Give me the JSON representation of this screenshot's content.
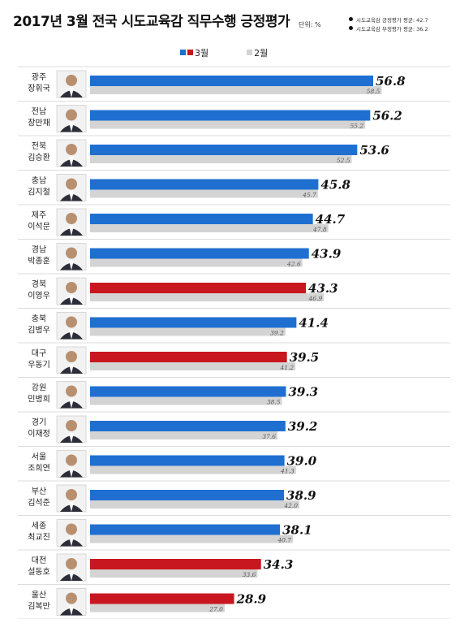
{
  "title": "2017년 3월 전국 시도교육감 직무수행 긍정평가",
  "unit": "단위: %",
  "averages": [
    "시도교육감 긍정평가 평균: 42.7",
    "시도교육감 부정평가 평균: 36.2"
  ],
  "colors": {
    "march_blue": "#1f6fd1",
    "march_red": "#c8171e",
    "feb_gray": "#d4d4d4",
    "row_line": "#dddddd"
  },
  "legend": {
    "march_label": "3월",
    "feb_label": "2월"
  },
  "chart_data": {
    "type": "bar",
    "orientation": "horizontal",
    "xlim": [
      0,
      60
    ],
    "grid": false,
    "legend_position": "top",
    "categories": [
      {
        "region": "광주",
        "name": "장휘국",
        "march": 56.8,
        "feb": 58.5,
        "highlight": false
      },
      {
        "region": "전남",
        "name": "장만채",
        "march": 56.2,
        "feb": 55.2,
        "highlight": false
      },
      {
        "region": "전북",
        "name": "김승환",
        "march": 53.6,
        "feb": 52.5,
        "highlight": false
      },
      {
        "region": "충남",
        "name": "김지철",
        "march": 45.8,
        "feb": 45.7,
        "highlight": false
      },
      {
        "region": "제주",
        "name": "이석문",
        "march": 44.7,
        "feb": 47.8,
        "highlight": false
      },
      {
        "region": "경남",
        "name": "박종훈",
        "march": 43.9,
        "feb": 42.6,
        "highlight": false
      },
      {
        "region": "경북",
        "name": "이영우",
        "march": 43.3,
        "feb": 46.9,
        "highlight": true
      },
      {
        "region": "충북",
        "name": "김병우",
        "march": 41.4,
        "feb": 39.2,
        "highlight": false
      },
      {
        "region": "대구",
        "name": "우동기",
        "march": 39.5,
        "feb": 41.2,
        "highlight": true
      },
      {
        "region": "강원",
        "name": "민병희",
        "march": 39.3,
        "feb": 38.5,
        "highlight": false
      },
      {
        "region": "경기",
        "name": "이재정",
        "march": 39.2,
        "feb": 37.6,
        "highlight": false
      },
      {
        "region": "서울",
        "name": "조희연",
        "march": 39.0,
        "feb": 41.3,
        "highlight": false
      },
      {
        "region": "부산",
        "name": "김석준",
        "march": 38.9,
        "feb": 42.0,
        "highlight": false
      },
      {
        "region": "세종",
        "name": "최교진",
        "march": 38.1,
        "feb": 40.7,
        "highlight": false
      },
      {
        "region": "대전",
        "name": "설동호",
        "march": 34.3,
        "feb": 33.6,
        "highlight": true
      },
      {
        "region": "울산",
        "name": "김복만",
        "march": 28.9,
        "feb": 27.0,
        "highlight": true
      }
    ],
    "series": [
      {
        "name": "3월",
        "key": "march"
      },
      {
        "name": "2월",
        "key": "feb"
      }
    ]
  }
}
